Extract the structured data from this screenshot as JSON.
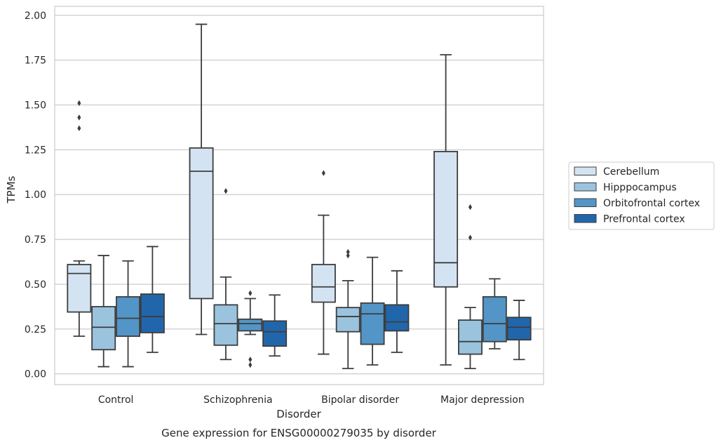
{
  "chart_data": {
    "type": "box",
    "xlabel": "Disorder",
    "ylabel": "TPMs",
    "caption": "Gene expression for ENSG00000279035 by disorder",
    "ylim": [
      -0.06,
      2.05
    ],
    "yticks": [
      "0.00",
      "0.25",
      "0.50",
      "0.75",
      "1.00",
      "1.25",
      "1.50",
      "1.75",
      "2.00"
    ],
    "grid": true,
    "legend_position": "right",
    "categories": [
      "Control",
      "Schizophrenia",
      "Bipolar disorder",
      "Major depression"
    ],
    "series": [
      {
        "name": "Cerebellum",
        "color": "#d3e3f2",
        "boxes": [
          {
            "whislo": 0.21,
            "q1": 0.345,
            "med": 0.56,
            "q3": 0.61,
            "whishi": 0.63,
            "fliers": [
              1.37,
              1.43,
              1.51
            ]
          },
          {
            "whislo": 0.22,
            "q1": 0.42,
            "med": 1.13,
            "q3": 1.26,
            "whishi": 1.95,
            "fliers": []
          },
          {
            "whislo": 0.11,
            "q1": 0.4,
            "med": 0.485,
            "q3": 0.61,
            "whishi": 0.885,
            "fliers": [
              1.12
            ]
          },
          {
            "whislo": 0.05,
            "q1": 0.485,
            "med": 0.62,
            "q3": 1.24,
            "whishi": 1.78,
            "fliers": []
          }
        ]
      },
      {
        "name": "Hipppocampus",
        "color": "#9ac3de",
        "boxes": [
          {
            "whislo": 0.04,
            "q1": 0.135,
            "med": 0.26,
            "q3": 0.375,
            "whishi": 0.66,
            "fliers": []
          },
          {
            "whislo": 0.08,
            "q1": 0.16,
            "med": 0.28,
            "q3": 0.385,
            "whishi": 0.54,
            "fliers": [
              1.02
            ]
          },
          {
            "whislo": 0.03,
            "q1": 0.235,
            "med": 0.32,
            "q3": 0.37,
            "whishi": 0.52,
            "fliers": [
              0.66,
              0.68
            ]
          },
          {
            "whislo": 0.03,
            "q1": 0.11,
            "med": 0.18,
            "q3": 0.3,
            "whishi": 0.37,
            "fliers": [
              0.76,
              0.93
            ]
          }
        ]
      },
      {
        "name": "Orbitofrontal cortex",
        "color": "#5395c6",
        "boxes": [
          {
            "whislo": 0.04,
            "q1": 0.21,
            "med": 0.31,
            "q3": 0.43,
            "whishi": 0.63,
            "fliers": []
          },
          {
            "whislo": 0.22,
            "q1": 0.24,
            "med": 0.28,
            "q3": 0.305,
            "whishi": 0.42,
            "fliers": [
              0.45,
              0.05,
              0.08
            ]
          },
          {
            "whislo": 0.05,
            "q1": 0.165,
            "med": 0.335,
            "q3": 0.395,
            "whishi": 0.65,
            "fliers": []
          },
          {
            "whislo": 0.14,
            "q1": 0.18,
            "med": 0.28,
            "q3": 0.43,
            "whishi": 0.53,
            "fliers": []
          }
        ]
      },
      {
        "name": "Prefrontal cortex",
        "color": "#2166ab",
        "boxes": [
          {
            "whislo": 0.12,
            "q1": 0.23,
            "med": 0.32,
            "q3": 0.445,
            "whishi": 0.71,
            "fliers": []
          },
          {
            "whislo": 0.1,
            "q1": 0.155,
            "med": 0.235,
            "q3": 0.295,
            "whishi": 0.44,
            "fliers": []
          },
          {
            "whislo": 0.12,
            "q1": 0.24,
            "med": 0.29,
            "q3": 0.385,
            "whishi": 0.575,
            "fliers": []
          },
          {
            "whislo": 0.08,
            "q1": 0.19,
            "med": 0.26,
            "q3": 0.315,
            "whishi": 0.41,
            "fliers": []
          }
        ]
      }
    ]
  }
}
